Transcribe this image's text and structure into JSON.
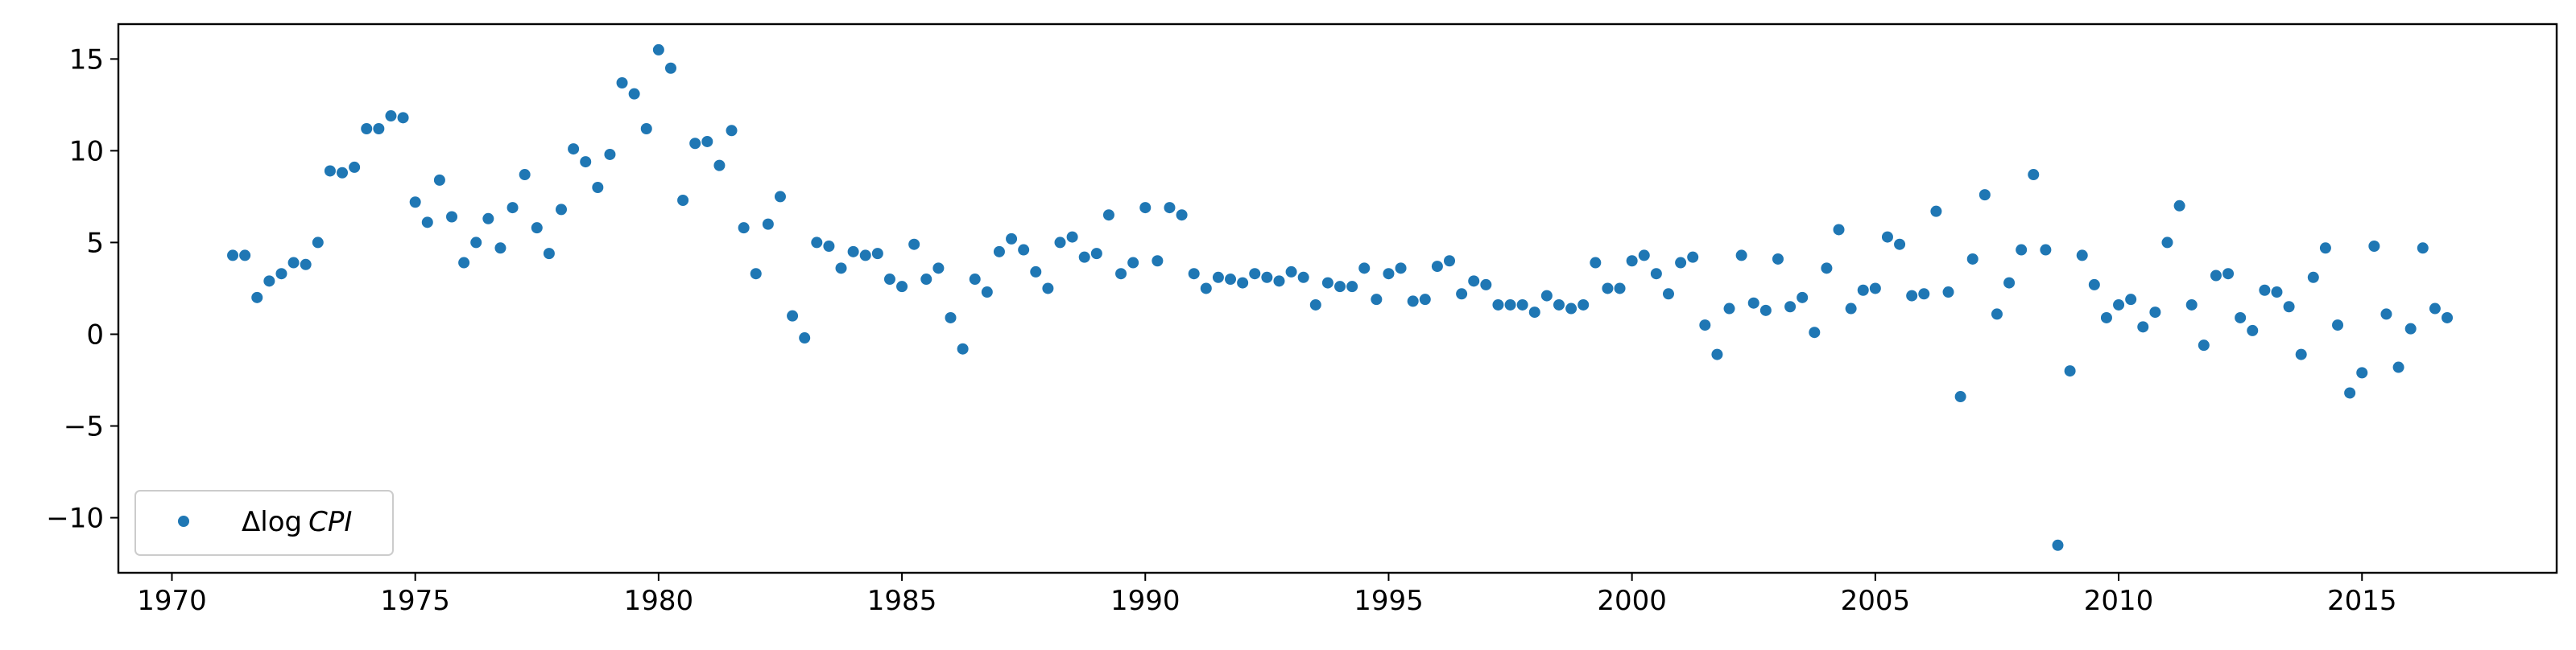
{
  "chart_data": {
    "type": "scatter",
    "title": "",
    "xlabel": "",
    "ylabel": "",
    "xlim": [
      1968.9,
      2019.0
    ],
    "ylim": [
      -13.0,
      16.9
    ],
    "xticks": [
      1970,
      1975,
      1980,
      1985,
      1990,
      1995,
      2000,
      2005,
      2010,
      2015
    ],
    "yticks": [
      -10,
      -5,
      0,
      5,
      10,
      15
    ],
    "ytick_labels": [
      "−10",
      "−5",
      "0",
      "5",
      "10",
      "15"
    ],
    "grid": false,
    "legend": {
      "location": "lower-left",
      "entries": [
        {
          "label_prefix": "Δlog",
          "label_var": "CPI"
        }
      ]
    },
    "colors": {
      "series": "#1f77b4",
      "axes": "#000000"
    },
    "series": [
      {
        "name": "ΔlogCPI",
        "marker": "circle",
        "points": [
          [
            1971.25,
            4.3
          ],
          [
            1971.5,
            4.3
          ],
          [
            1971.75,
            2.0
          ],
          [
            1972.0,
            2.9
          ],
          [
            1972.25,
            3.3
          ],
          [
            1972.5,
            3.9
          ],
          [
            1972.75,
            3.8
          ],
          [
            1973.0,
            5.0
          ],
          [
            1973.25,
            8.9
          ],
          [
            1973.5,
            8.8
          ],
          [
            1973.75,
            9.1
          ],
          [
            1974.0,
            11.2
          ],
          [
            1974.25,
            11.2
          ],
          [
            1974.5,
            11.9
          ],
          [
            1974.75,
            11.8
          ],
          [
            1975.0,
            7.2
          ],
          [
            1975.25,
            6.1
          ],
          [
            1975.5,
            8.4
          ],
          [
            1975.75,
            6.4
          ],
          [
            1976.0,
            3.9
          ],
          [
            1976.25,
            5.0
          ],
          [
            1976.5,
            6.3
          ],
          [
            1976.75,
            4.7
          ],
          [
            1977.0,
            6.9
          ],
          [
            1977.25,
            8.7
          ],
          [
            1977.5,
            5.8
          ],
          [
            1977.75,
            4.4
          ],
          [
            1978.0,
            6.8
          ],
          [
            1978.25,
            10.1
          ],
          [
            1978.5,
            9.4
          ],
          [
            1978.75,
            8.0
          ],
          [
            1979.0,
            9.8
          ],
          [
            1979.25,
            13.7
          ],
          [
            1979.5,
            13.1
          ],
          [
            1979.75,
            11.2
          ],
          [
            1980.0,
            15.5
          ],
          [
            1980.25,
            14.5
          ],
          [
            1980.5,
            7.3
          ],
          [
            1980.75,
            10.4
          ],
          [
            1981.0,
            10.5
          ],
          [
            1981.25,
            9.2
          ],
          [
            1981.5,
            11.1
          ],
          [
            1981.75,
            5.8
          ],
          [
            1982.0,
            3.3
          ],
          [
            1982.25,
            6.0
          ],
          [
            1982.5,
            7.5
          ],
          [
            1982.75,
            1.0
          ],
          [
            1983.0,
            -0.2
          ],
          [
            1983.25,
            5.0
          ],
          [
            1983.5,
            4.8
          ],
          [
            1983.75,
            3.6
          ],
          [
            1984.0,
            4.5
          ],
          [
            1984.25,
            4.3
          ],
          [
            1984.5,
            4.4
          ],
          [
            1984.75,
            3.0
          ],
          [
            1985.0,
            2.6
          ],
          [
            1985.25,
            4.9
          ],
          [
            1985.5,
            3.0
          ],
          [
            1985.75,
            3.6
          ],
          [
            1986.0,
            0.9
          ],
          [
            1986.25,
            -0.8
          ],
          [
            1986.5,
            3.0
          ],
          [
            1986.75,
            2.3
          ],
          [
            1987.0,
            4.5
          ],
          [
            1987.25,
            5.2
          ],
          [
            1987.5,
            4.6
          ],
          [
            1987.75,
            3.4
          ],
          [
            1988.0,
            2.5
          ],
          [
            1988.25,
            5.0
          ],
          [
            1988.5,
            5.3
          ],
          [
            1988.75,
            4.2
          ],
          [
            1989.0,
            4.4
          ],
          [
            1989.25,
            6.5
          ],
          [
            1989.5,
            3.3
          ],
          [
            1989.75,
            3.9
          ],
          [
            1990.0,
            6.9
          ],
          [
            1990.25,
            4.0
          ],
          [
            1990.5,
            6.9
          ],
          [
            1990.75,
            6.5
          ],
          [
            1991.0,
            3.3
          ],
          [
            1991.25,
            2.5
          ],
          [
            1991.5,
            3.1
          ],
          [
            1991.75,
            3.0
          ],
          [
            1992.0,
            2.8
          ],
          [
            1992.25,
            3.3
          ],
          [
            1992.5,
            3.1
          ],
          [
            1992.75,
            2.9
          ],
          [
            1993.0,
            3.4
          ],
          [
            1993.25,
            3.1
          ],
          [
            1993.5,
            1.6
          ],
          [
            1993.75,
            2.8
          ],
          [
            1994.0,
            2.6
          ],
          [
            1994.25,
            2.6
          ],
          [
            1994.5,
            3.6
          ],
          [
            1994.75,
            1.9
          ],
          [
            1995.0,
            3.3
          ],
          [
            1995.25,
            3.6
          ],
          [
            1995.5,
            1.8
          ],
          [
            1995.75,
            1.9
          ],
          [
            1996.0,
            3.7
          ],
          [
            1996.25,
            4.0
          ],
          [
            1996.5,
            2.2
          ],
          [
            1996.75,
            2.9
          ],
          [
            1997.0,
            2.7
          ],
          [
            1997.25,
            1.6
          ],
          [
            1997.5,
            1.6
          ],
          [
            1997.75,
            1.6
          ],
          [
            1998.0,
            1.2
          ],
          [
            1998.25,
            2.1
          ],
          [
            1998.5,
            1.6
          ],
          [
            1998.75,
            1.4
          ],
          [
            1999.0,
            1.6
          ],
          [
            1999.25,
            3.9
          ],
          [
            1999.5,
            2.5
          ],
          [
            1999.75,
            2.5
          ],
          [
            2000.0,
            4.0
          ],
          [
            2000.25,
            4.3
          ],
          [
            2000.5,
            3.3
          ],
          [
            2000.75,
            2.2
          ],
          [
            2001.0,
            3.9
          ],
          [
            2001.25,
            4.2
          ],
          [
            2001.5,
            0.5
          ],
          [
            2001.75,
            -1.1
          ],
          [
            2002.0,
            1.4
          ],
          [
            2002.25,
            4.3
          ],
          [
            2002.5,
            1.7
          ],
          [
            2002.75,
            1.3
          ],
          [
            2003.0,
            4.1
          ],
          [
            2003.25,
            1.5
          ],
          [
            2003.5,
            2.0
          ],
          [
            2003.75,
            0.1
          ],
          [
            2004.0,
            3.6
          ],
          [
            2004.25,
            5.7
          ],
          [
            2004.5,
            1.4
          ],
          [
            2004.75,
            2.4
          ],
          [
            2005.0,
            2.5
          ],
          [
            2005.25,
            5.3
          ],
          [
            2005.5,
            4.9
          ],
          [
            2005.75,
            2.1
          ],
          [
            2006.0,
            2.2
          ],
          [
            2006.25,
            6.7
          ],
          [
            2006.5,
            2.3
          ],
          [
            2006.75,
            -3.4
          ],
          [
            2007.0,
            4.1
          ],
          [
            2007.25,
            7.6
          ],
          [
            2007.5,
            1.1
          ],
          [
            2007.75,
            2.8
          ],
          [
            2008.0,
            4.6
          ],
          [
            2008.25,
            8.7
          ],
          [
            2008.5,
            4.6
          ],
          [
            2008.75,
            -11.5
          ],
          [
            2009.0,
            -2.0
          ],
          [
            2009.25,
            4.3
          ],
          [
            2009.5,
            2.7
          ],
          [
            2009.75,
            0.9
          ],
          [
            2010.0,
            1.6
          ],
          [
            2010.25,
            1.9
          ],
          [
            2010.5,
            0.4
          ],
          [
            2010.75,
            1.2
          ],
          [
            2011.0,
            5.0
          ],
          [
            2011.25,
            7.0
          ],
          [
            2011.5,
            1.6
          ],
          [
            2011.75,
            -0.6
          ],
          [
            2012.0,
            3.2
          ],
          [
            2012.25,
            3.3
          ],
          [
            2012.5,
            0.9
          ],
          [
            2012.75,
            0.2
          ],
          [
            2013.0,
            2.4
          ],
          [
            2013.25,
            2.3
          ],
          [
            2013.5,
            1.5
          ],
          [
            2013.75,
            -1.1
          ],
          [
            2014.0,
            3.1
          ],
          [
            2014.25,
            4.7
          ],
          [
            2014.5,
            0.5
          ],
          [
            2014.75,
            -3.2
          ],
          [
            2015.0,
            -2.1
          ],
          [
            2015.25,
            4.8
          ],
          [
            2015.5,
            1.1
          ],
          [
            2015.75,
            -1.8
          ],
          [
            2016.0,
            0.3
          ],
          [
            2016.25,
            4.7
          ],
          [
            2016.5,
            1.4
          ],
          [
            2016.75,
            0.9
          ]
        ]
      }
    ]
  }
}
